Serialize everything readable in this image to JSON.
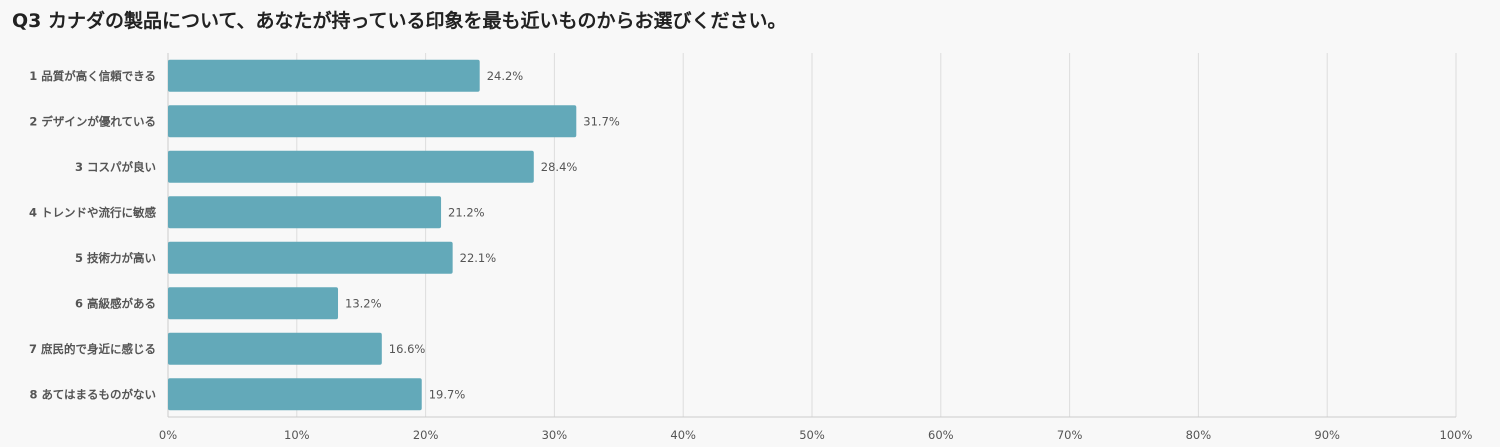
{
  "chart_data": {
    "type": "bar",
    "orientation": "horizontal",
    "title": "Q3 カナダの製品について、あなたが持っている印象を最も近いものからお選びください。",
    "categories": [
      "1 品質が高く信頼できる",
      "2 デザインが優れている",
      "3 コスパが良い",
      "4 トレンドや流行に敏感",
      "5 技術力が高い",
      "6 高級感がある",
      "7 庶民的で身近に感じる",
      "8 あてはまるものがない"
    ],
    "values": [
      24.2,
      31.7,
      28.4,
      21.2,
      22.1,
      13.2,
      16.6,
      19.7
    ],
    "value_labels": [
      "24.2%",
      "31.7%",
      "28.4%",
      "21.2%",
      "22.1%",
      "13.2%",
      "16.6%",
      "19.7%"
    ],
    "xlim": [
      0,
      100
    ],
    "x_ticks": [
      0,
      10,
      20,
      30,
      40,
      50,
      60,
      70,
      80,
      90,
      100
    ],
    "x_tick_labels": [
      "0%",
      "10%",
      "20%",
      "30%",
      "40%",
      "50%",
      "60%",
      "70%",
      "80%",
      "90%",
      "100%"
    ],
    "grid": true,
    "bar_color": "#63a9b9",
    "grid_color": "#dddddd",
    "axis_color": "#cccccc"
  }
}
